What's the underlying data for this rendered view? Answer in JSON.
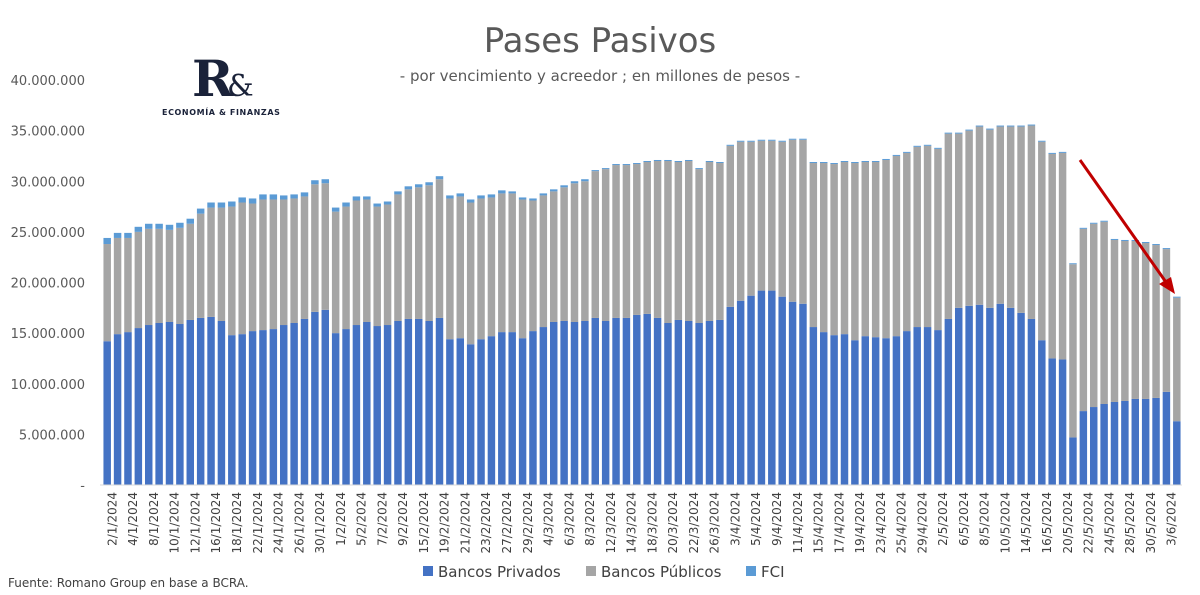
{
  "chart_data": {
    "type": "bar",
    "stacked": true,
    "title": "Pases Pasivos",
    "subtitle": "- por vencimiento y acreedor ; en millones de pesos -",
    "ylim": [
      0,
      40000000
    ],
    "y_ticks": [
      "-",
      "5.000.000",
      "10.000.000",
      "15.000.000",
      "20.000.000",
      "25.000.000",
      "30.000.000",
      "35.000.000",
      "40.000.000"
    ],
    "x_tick_labels": [
      "2/1/2024",
      "4/1/2024",
      "8/1/2024",
      "10/1/2024",
      "12/1/2024",
      "16/1/2024",
      "18/1/2024",
      "22/1/2024",
      "24/1/2024",
      "26/1/2024",
      "30/1/2024",
      "1/2/2024",
      "5/2/2024",
      "7/2/2024",
      "9/2/2024",
      "15/2/2024",
      "19/2/2024",
      "21/2/2024",
      "23/2/2024",
      "27/2/2024",
      "29/2/2024",
      "4/3/2024",
      "6/3/2024",
      "8/3/2024",
      "12/3/2024",
      "14/3/2024",
      "18/3/2024",
      "20/3/2024",
      "22/3/2024",
      "26/3/2024",
      "3/4/2024",
      "5/4/2024",
      "9/4/2024",
      "11/4/2024",
      "15/4/2024",
      "17/4/2024",
      "19/4/2024",
      "23/4/2024",
      "25/4/2024",
      "29/4/2024",
      "2/5/2024",
      "6/5/2024",
      "8/5/2024",
      "10/5/2024",
      "14/5/2024",
      "16/5/2024",
      "20/5/2024",
      "22/5/2024",
      "24/5/2024",
      "28/5/2024",
      "30/5/2024",
      "3/6/2024"
    ],
    "series": [
      {
        "name": "Bancos Privados",
        "color": "#4472c4",
        "values": [
          14.2,
          14.9,
          15.1,
          15.5,
          15.8,
          16.0,
          16.1,
          15.9,
          16.3,
          16.5,
          16.6,
          16.2,
          14.8,
          14.9,
          15.2,
          15.3,
          15.4,
          15.8,
          16.0,
          16.4,
          17.1,
          17.3,
          15.0,
          15.4,
          15.8,
          16.1,
          15.7,
          15.8,
          16.2,
          16.4,
          16.4,
          16.2,
          16.5,
          14.4,
          14.5,
          13.9,
          14.4,
          14.7,
          15.1,
          15.1,
          14.5,
          15.2,
          15.6,
          16.1,
          16.2,
          16.1,
          16.2,
          16.5,
          16.2,
          16.5,
          16.5,
          16.8,
          16.9,
          16.5,
          16.0,
          16.3,
          16.2,
          16.0,
          16.2,
          16.3,
          17.6,
          18.2,
          18.7,
          19.2,
          19.2,
          18.6,
          18.1,
          17.9,
          15.6,
          15.1,
          14.8,
          14.9,
          14.3,
          14.7,
          14.6,
          14.5,
          14.7,
          15.2,
          15.6,
          15.6,
          15.3,
          16.4,
          17.5,
          17.7,
          17.8,
          17.5,
          17.9,
          17.5,
          17.0,
          16.4,
          14.3,
          12.5,
          12.4,
          4.7,
          7.3,
          7.7,
          8.0,
          8.2,
          8.3,
          8.5,
          8.5,
          8.6,
          9.2,
          6.3
        ],
        "unit_multiplier": 1000000
      },
      {
        "name": "Bancos Públicos",
        "color": "#a5a5a5",
        "values": [
          9.6,
          9.5,
          9.3,
          9.5,
          9.5,
          9.3,
          9.1,
          9.5,
          9.5,
          10.3,
          10.8,
          11.2,
          12.7,
          13.0,
          12.6,
          12.9,
          12.8,
          12.4,
          12.3,
          12.1,
          12.6,
          12.5,
          12.0,
          12.1,
          12.3,
          12.1,
          11.8,
          11.9,
          12.5,
          12.8,
          13.0,
          13.4,
          13.7,
          13.9,
          14.0,
          14.0,
          13.9,
          13.7,
          13.7,
          13.7,
          13.7,
          12.9,
          13.0,
          12.9,
          13.2,
          13.7,
          13.8,
          14.5,
          15.0,
          15.1,
          15.1,
          14.9,
          15.0,
          15.5,
          16.0,
          15.6,
          15.8,
          15.2,
          15.7,
          15.5,
          15.9,
          15.7,
          15.2,
          14.8,
          14.8,
          15.3,
          16.0,
          16.2,
          16.2,
          16.7,
          16.9,
          17.0,
          17.5,
          17.2,
          17.3,
          17.6,
          17.8,
          17.6,
          17.8,
          17.9,
          17.9,
          18.3,
          17.2,
          17.3,
          17.6,
          17.6,
          17.5,
          17.9,
          18.4,
          19.1,
          19.6,
          20.2,
          20.4,
          17.1,
          18.0,
          18.1,
          18.0,
          16.0,
          15.8,
          15.6,
          15.4,
          15.1,
          14.1,
          12.2
        ],
        "unit_multiplier": 1000000
      },
      {
        "name": "FCI",
        "color": "#5b9bd5",
        "values": [
          0.6,
          0.5,
          0.5,
          0.5,
          0.5,
          0.5,
          0.5,
          0.5,
          0.5,
          0.5,
          0.5,
          0.5,
          0.5,
          0.5,
          0.5,
          0.5,
          0.5,
          0.4,
          0.4,
          0.4,
          0.4,
          0.4,
          0.4,
          0.4,
          0.4,
          0.3,
          0.3,
          0.3,
          0.3,
          0.3,
          0.3,
          0.3,
          0.3,
          0.3,
          0.3,
          0.3,
          0.3,
          0.3,
          0.3,
          0.2,
          0.2,
          0.2,
          0.2,
          0.2,
          0.2,
          0.2,
          0.2,
          0.1,
          0.1,
          0.1,
          0.1,
          0.1,
          0.1,
          0.1,
          0.1,
          0.1,
          0.1,
          0.1,
          0.1,
          0.1,
          0.1,
          0.1,
          0.1,
          0.1,
          0.1,
          0.1,
          0.1,
          0.1,
          0.1,
          0.1,
          0.1,
          0.1,
          0.1,
          0.1,
          0.1,
          0.1,
          0.1,
          0.1,
          0.1,
          0.1,
          0.1,
          0.1,
          0.1,
          0.1,
          0.1,
          0.1,
          0.1,
          0.1,
          0.1,
          0.1,
          0.1,
          0.1,
          0.1,
          0.1,
          0.1,
          0.1,
          0.1,
          0.1,
          0.1,
          0.1,
          0.1,
          0.1,
          0.1,
          0.1
        ],
        "unit_multiplier": 1000000
      }
    ],
    "legend": [
      "Bancos Privados",
      "Bancos Públicos",
      "FCI"
    ],
    "legend_position": "bottom",
    "grid": false,
    "annotation": {
      "type": "arrow",
      "color": "#c00000",
      "description": "downward trend arrow over last weeks"
    }
  },
  "logo": {
    "mark": "R",
    "amp": "&",
    "subtitle": "ECONOMÍA & FINANZAS"
  },
  "source": "Fuente: Romano Group en base a BCRA."
}
